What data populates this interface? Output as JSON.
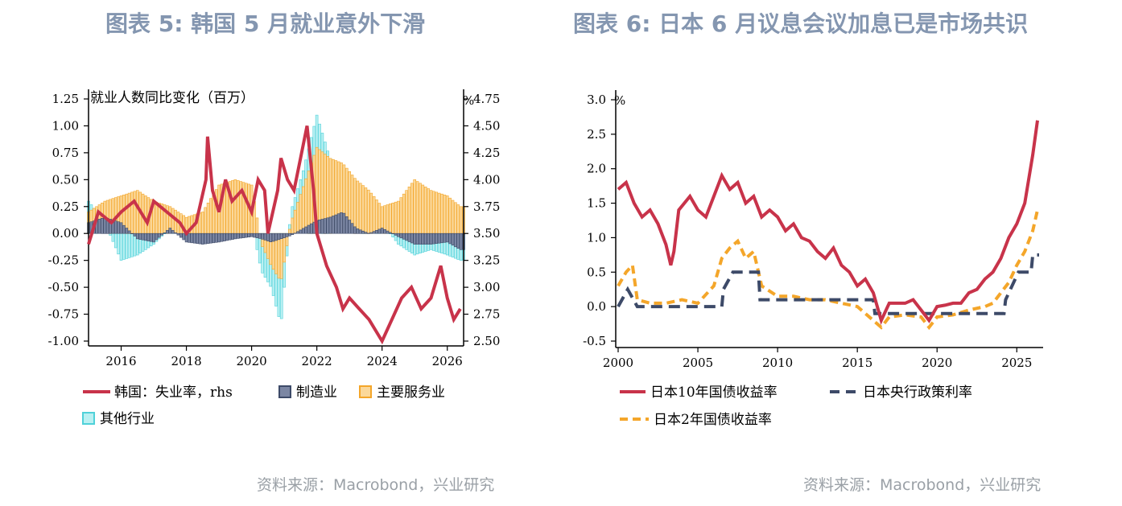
{
  "left_title": "图表 5: 韩国 5 月就业意外下滑",
  "right_title": "图表 6: 日本 6 月议息会议加息已是市场共识",
  "left_source": "资料来源：Macrobond，兴业研究",
  "right_source": "资料来源：Macrobond，兴业研究",
  "colors": {
    "red": "#c8334a",
    "navy": "#3d4a68",
    "orange": "#f4a62a",
    "cyan": "#4fd1d9",
    "title": "#8496b0"
  },
  "chart_data": [
    {
      "type": "bar",
      "ylabel_left": "就业人数同比变化（百万）",
      "ylabel_right": "%",
      "ylim_left": [
        -1.0,
        1.25
      ],
      "ylim_right": [
        2.5,
        4.75
      ],
      "xlim": [
        2015.0,
        2026.5
      ],
      "x_ticks": [
        "2016",
        "2018",
        "2020",
        "2022",
        "2024",
        "2026"
      ],
      "y_ticks_left": [
        "1.25",
        "1.00",
        "0.75",
        "0.50",
        "0.25",
        "0.00",
        "-0.25",
        "-0.50",
        "-0.75",
        "-1.00"
      ],
      "y_ticks_right": [
        "4.75",
        "4.50",
        "4.25",
        "4.00",
        "3.75",
        "3.50",
        "3.25",
        "3.00",
        "2.75",
        "2.50"
      ],
      "legend": [
        "韩国：失业率，rhs",
        "制造业",
        "主要服务业",
        "其他行业"
      ],
      "series": [
        {
          "name": "其他行业",
          "kind": "bar",
          "points": [
            [
              2015.0,
              0.3
            ],
            [
              2015.5,
              0.1
            ],
            [
              2016.0,
              -0.25
            ],
            [
              2016.5,
              -0.2
            ],
            [
              2017.0,
              -0.1
            ],
            [
              2017.5,
              0.05
            ],
            [
              2018.0,
              -0.05
            ],
            [
              2018.5,
              0.05
            ],
            [
              2019.0,
              0.1
            ],
            [
              2019.5,
              0.15
            ],
            [
              2020.0,
              0.1
            ],
            [
              2020.3,
              -0.35
            ],
            [
              2020.6,
              -0.5
            ],
            [
              2020.9,
              -0.85
            ],
            [
              2021.2,
              0.2
            ],
            [
              2021.6,
              0.6
            ],
            [
              2022.0,
              1.1
            ],
            [
              2022.4,
              0.7
            ],
            [
              2022.8,
              0.6
            ],
            [
              2023.2,
              0.35
            ],
            [
              2023.6,
              0.2
            ],
            [
              2024.0,
              0.1
            ],
            [
              2024.5,
              -0.1
            ],
            [
              2025.0,
              -0.2
            ],
            [
              2025.5,
              -0.15
            ],
            [
              2026.0,
              -0.2
            ],
            [
              2026.4,
              -0.25
            ]
          ]
        },
        {
          "name": "主要服务业",
          "kind": "bar",
          "points": [
            [
              2015.0,
              0.2
            ],
            [
              2015.5,
              0.3
            ],
            [
              2016.0,
              0.35
            ],
            [
              2016.5,
              0.4
            ],
            [
              2017.0,
              0.3
            ],
            [
              2017.5,
              0.25
            ],
            [
              2018.0,
              0.15
            ],
            [
              2018.5,
              0.2
            ],
            [
              2019.0,
              0.45
            ],
            [
              2019.5,
              0.5
            ],
            [
              2020.0,
              0.45
            ],
            [
              2020.3,
              -0.1
            ],
            [
              2020.6,
              -0.3
            ],
            [
              2020.9,
              -0.45
            ],
            [
              2021.2,
              0.1
            ],
            [
              2021.6,
              0.45
            ],
            [
              2022.0,
              0.8
            ],
            [
              2022.4,
              0.7
            ],
            [
              2022.8,
              0.65
            ],
            [
              2023.2,
              0.5
            ],
            [
              2023.6,
              0.4
            ],
            [
              2024.0,
              0.25
            ],
            [
              2024.5,
              0.3
            ],
            [
              2025.0,
              0.5
            ],
            [
              2025.5,
              0.4
            ],
            [
              2026.0,
              0.35
            ],
            [
              2026.4,
              0.25
            ]
          ]
        },
        {
          "name": "制造业",
          "kind": "bar",
          "points": [
            [
              2015.0,
              0.1
            ],
            [
              2015.5,
              0.15
            ],
            [
              2016.0,
              0.1
            ],
            [
              2016.5,
              -0.05
            ],
            [
              2017.0,
              -0.08
            ],
            [
              2017.5,
              0.05
            ],
            [
              2018.0,
              -0.08
            ],
            [
              2018.5,
              -0.1
            ],
            [
              2019.0,
              -0.08
            ],
            [
              2019.5,
              -0.05
            ],
            [
              2020.0,
              -0.03
            ],
            [
              2020.3,
              -0.05
            ],
            [
              2020.6,
              -0.08
            ],
            [
              2020.9,
              -0.05
            ],
            [
              2021.2,
              -0.02
            ],
            [
              2021.6,
              0.05
            ],
            [
              2022.0,
              0.12
            ],
            [
              2022.4,
              0.15
            ],
            [
              2022.8,
              0.2
            ],
            [
              2023.2,
              0.05
            ],
            [
              2023.6,
              0.0
            ],
            [
              2024.0,
              0.05
            ],
            [
              2024.5,
              -0.03
            ],
            [
              2025.0,
              -0.1
            ],
            [
              2025.5,
              -0.1
            ],
            [
              2026.0,
              -0.08
            ],
            [
              2026.4,
              -0.15
            ]
          ]
        },
        {
          "name": "韩国：失业率，rhs",
          "kind": "line",
          "axis": "right",
          "points": [
            [
              2015.0,
              3.4
            ],
            [
              2015.3,
              3.7
            ],
            [
              2015.7,
              3.6
            ],
            [
              2016.0,
              3.7
            ],
            [
              2016.4,
              3.8
            ],
            [
              2016.8,
              3.6
            ],
            [
              2017.0,
              3.8
            ],
            [
              2017.4,
              3.7
            ],
            [
              2017.8,
              3.6
            ],
            [
              2018.0,
              3.5
            ],
            [
              2018.3,
              3.6
            ],
            [
              2018.6,
              4.0
            ],
            [
              2018.65,
              4.4
            ],
            [
              2018.8,
              3.9
            ],
            [
              2019.0,
              3.7
            ],
            [
              2019.2,
              4.0
            ],
            [
              2019.4,
              3.8
            ],
            [
              2019.7,
              3.9
            ],
            [
              2020.0,
              3.7
            ],
            [
              2020.2,
              4.0
            ],
            [
              2020.4,
              3.9
            ],
            [
              2020.5,
              3.5
            ],
            [
              2020.8,
              3.9
            ],
            [
              2020.9,
              4.2
            ],
            [
              2021.1,
              4.0
            ],
            [
              2021.3,
              3.9
            ],
            [
              2021.5,
              4.2
            ],
            [
              2021.7,
              4.5
            ],
            [
              2021.9,
              3.9
            ],
            [
              2022.0,
              3.5
            ],
            [
              2022.1,
              3.4
            ],
            [
              2022.3,
              3.2
            ],
            [
              2022.6,
              3.0
            ],
            [
              2022.8,
              2.8
            ],
            [
              2023.0,
              2.9
            ],
            [
              2023.3,
              2.8
            ],
            [
              2023.6,
              2.7
            ],
            [
              2023.8,
              2.6
            ],
            [
              2024.0,
              2.5
            ],
            [
              2024.3,
              2.7
            ],
            [
              2024.6,
              2.9
            ],
            [
              2024.9,
              3.0
            ],
            [
              2025.2,
              2.8
            ],
            [
              2025.5,
              2.9
            ],
            [
              2025.8,
              3.2
            ],
            [
              2026.0,
              2.9
            ],
            [
              2026.2,
              2.7
            ],
            [
              2026.4,
              2.8
            ]
          ]
        }
      ]
    },
    {
      "type": "line",
      "ylabel": "%",
      "ylim": [
        -0.5,
        3.0
      ],
      "xlim": [
        2000,
        2026.5
      ],
      "x_ticks": [
        "2000",
        "2005",
        "2010",
        "2015",
        "2020",
        "2025"
      ],
      "y_ticks": [
        "3.0",
        "2.5",
        "2.0",
        "1.5",
        "1.0",
        "0.5",
        "0.0",
        "-0.5"
      ],
      "legend": [
        "日本10年国债收益率",
        "日本央行政策利率",
        "日本2年国债收益率"
      ],
      "series": [
        {
          "name": "日本10年国债收益率",
          "points": [
            [
              2000.0,
              1.7
            ],
            [
              2000.5,
              1.8
            ],
            [
              2001.0,
              1.5
            ],
            [
              2001.5,
              1.3
            ],
            [
              2002.0,
              1.4
            ],
            [
              2002.5,
              1.2
            ],
            [
              2003.0,
              0.9
            ],
            [
              2003.3,
              0.6
            ],
            [
              2003.5,
              0.8
            ],
            [
              2003.8,
              1.4
            ],
            [
              2004.5,
              1.6
            ],
            [
              2005.0,
              1.4
            ],
            [
              2005.5,
              1.3
            ],
            [
              2006.0,
              1.6
            ],
            [
              2006.5,
              1.9
            ],
            [
              2007.0,
              1.7
            ],
            [
              2007.5,
              1.8
            ],
            [
              2008.0,
              1.5
            ],
            [
              2008.5,
              1.6
            ],
            [
              2009.0,
              1.3
            ],
            [
              2009.5,
              1.4
            ],
            [
              2010.0,
              1.3
            ],
            [
              2010.5,
              1.1
            ],
            [
              2011.0,
              1.2
            ],
            [
              2011.5,
              1.0
            ],
            [
              2012.0,
              0.95
            ],
            [
              2012.5,
              0.8
            ],
            [
              2013.0,
              0.7
            ],
            [
              2013.5,
              0.85
            ],
            [
              2014.0,
              0.6
            ],
            [
              2014.5,
              0.5
            ],
            [
              2015.0,
              0.3
            ],
            [
              2015.5,
              0.4
            ],
            [
              2016.0,
              0.2
            ],
            [
              2016.5,
              -0.2
            ],
            [
              2017.0,
              0.05
            ],
            [
              2017.5,
              0.05
            ],
            [
              2018.0,
              0.05
            ],
            [
              2018.5,
              0.1
            ],
            [
              2019.0,
              -0.05
            ],
            [
              2019.5,
              -0.2
            ],
            [
              2020.0,
              0.0
            ],
            [
              2020.5,
              0.02
            ],
            [
              2021.0,
              0.05
            ],
            [
              2021.5,
              0.05
            ],
            [
              2022.0,
              0.2
            ],
            [
              2022.5,
              0.25
            ],
            [
              2023.0,
              0.4
            ],
            [
              2023.5,
              0.5
            ],
            [
              2024.0,
              0.7
            ],
            [
              2024.5,
              1.0
            ],
            [
              2025.0,
              1.2
            ],
            [
              2025.5,
              1.5
            ],
            [
              2026.0,
              2.2
            ],
            [
              2026.3,
              2.7
            ]
          ]
        },
        {
          "name": "日本央行政策利率",
          "points": [
            [
              2000.0,
              0.0
            ],
            [
              2000.6,
              0.25
            ],
            [
              2001.2,
              0.0
            ],
            [
              2006.5,
              0.0
            ],
            [
              2006.6,
              0.25
            ],
            [
              2007.2,
              0.5
            ],
            [
              2008.8,
              0.5
            ],
            [
              2008.9,
              0.1
            ],
            [
              2016.0,
              0.1
            ],
            [
              2016.1,
              -0.1
            ],
            [
              2024.2,
              -0.1
            ],
            [
              2024.3,
              0.1
            ],
            [
              2024.6,
              0.25
            ],
            [
              2025.1,
              0.5
            ],
            [
              2025.9,
              0.5
            ],
            [
              2026.0,
              0.75
            ],
            [
              2026.4,
              0.75
            ]
          ]
        },
        {
          "name": "日本2年国债收益率",
          "points": [
            [
              2000.0,
              0.3
            ],
            [
              2000.5,
              0.5
            ],
            [
              2000.9,
              0.6
            ],
            [
              2001.2,
              0.1
            ],
            [
              2002.0,
              0.05
            ],
            [
              2003.0,
              0.05
            ],
            [
              2004.0,
              0.1
            ],
            [
              2005.0,
              0.05
            ],
            [
              2006.0,
              0.3
            ],
            [
              2006.5,
              0.7
            ],
            [
              2007.0,
              0.85
            ],
            [
              2007.5,
              0.95
            ],
            [
              2008.0,
              0.7
            ],
            [
              2008.5,
              0.8
            ],
            [
              2009.0,
              0.3
            ],
            [
              2010.0,
              0.15
            ],
            [
              2011.0,
              0.15
            ],
            [
              2012.0,
              0.1
            ],
            [
              2013.0,
              0.1
            ],
            [
              2014.0,
              0.05
            ],
            [
              2015.0,
              0.0
            ],
            [
              2016.0,
              -0.2
            ],
            [
              2016.5,
              -0.3
            ],
            [
              2017.0,
              -0.15
            ],
            [
              2018.0,
              -0.12
            ],
            [
              2019.0,
              -0.15
            ],
            [
              2019.5,
              -0.3
            ],
            [
              2020.0,
              -0.15
            ],
            [
              2021.0,
              -0.12
            ],
            [
              2022.0,
              -0.05
            ],
            [
              2023.0,
              0.0
            ],
            [
              2023.5,
              0.05
            ],
            [
              2024.0,
              0.2
            ],
            [
              2024.5,
              0.35
            ],
            [
              2025.0,
              0.6
            ],
            [
              2025.5,
              0.8
            ],
            [
              2026.0,
              1.1
            ],
            [
              2026.3,
              1.4
            ]
          ]
        }
      ]
    }
  ]
}
